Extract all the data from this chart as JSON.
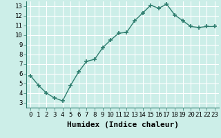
{
  "x": [
    0,
    1,
    2,
    3,
    4,
    5,
    6,
    7,
    8,
    9,
    10,
    11,
    12,
    13,
    14,
    15,
    16,
    17,
    18,
    19,
    20,
    21,
    22,
    23
  ],
  "y": [
    5.8,
    4.8,
    4.0,
    3.5,
    3.2,
    4.8,
    6.2,
    7.3,
    7.5,
    8.7,
    9.5,
    10.2,
    10.3,
    11.5,
    12.3,
    13.1,
    12.8,
    13.2,
    12.1,
    11.5,
    10.9,
    10.8,
    10.9,
    10.9
  ],
  "line_color": "#2e7d6e",
  "marker": "+",
  "marker_size": 4,
  "bg_color": "#cceee8",
  "grid_color": "#ffffff",
  "grid_minor_color": "#e0f5f5",
  "xlabel": "Humidex (Indice chaleur)",
  "xlabel_fontsize": 8,
  "xlim": [
    -0.5,
    23.5
  ],
  "ylim": [
    2.5,
    13.5
  ],
  "yticks": [
    3,
    4,
    5,
    6,
    7,
    8,
    9,
    10,
    11,
    12,
    13
  ],
  "xticks": [
    0,
    1,
    2,
    3,
    4,
    5,
    6,
    7,
    8,
    9,
    10,
    11,
    12,
    13,
    14,
    15,
    16,
    17,
    18,
    19,
    20,
    21,
    22,
    23
  ],
  "tick_fontsize": 6.5,
  "line_width": 1.0,
  "marker_edge_width": 1.2
}
